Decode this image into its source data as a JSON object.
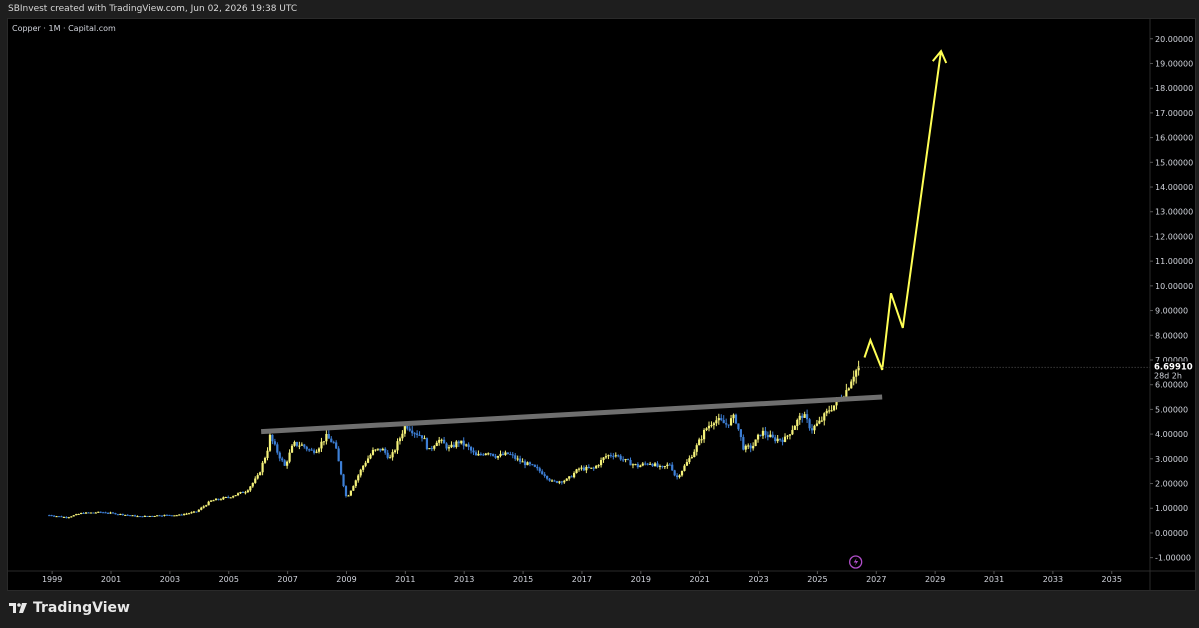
{
  "header": {
    "attribution": "SBInvest created with TradingView.com, Jun 02, 2026 19:38 UTC"
  },
  "symbol": {
    "label": "Copper · 1M · Capital.com"
  },
  "footer": {
    "brand": "TradingView",
    "logo_icon": "tradingview-logo-icon"
  },
  "price_marker": {
    "price": "6.69910",
    "countdown": "28d 2h"
  },
  "colors": {
    "background": "#000000",
    "up_candle": "#f5f27a",
    "down_candle": "#3d7fd6",
    "trendline": "#6f6f6f",
    "projection": "#ffff55",
    "axis_text": "#d1d4dc"
  },
  "chart_data": {
    "type": "candlestick",
    "title": "",
    "xlabel": "",
    "ylabel": "",
    "ylim": [
      -1.5,
      20.8
    ],
    "xlim": [
      1997.5,
      2036.3
    ],
    "y_ticks": [
      "20.00000",
      "19.00000",
      "18.00000",
      "17.00000",
      "16.00000",
      "15.00000",
      "14.00000",
      "13.00000",
      "12.00000",
      "11.00000",
      "10.00000",
      "9.00000",
      "8.00000",
      "7.00000",
      "6.00000",
      "5.00000",
      "4.00000",
      "3.00000",
      "2.00000",
      "1.00000",
      "0.00000",
      "-1.00000"
    ],
    "x_ticks": [
      "1999",
      "2001",
      "2003",
      "2005",
      "2007",
      "2009",
      "2011",
      "2013",
      "2015",
      "2017",
      "2019",
      "2021",
      "2023",
      "2025",
      "2027",
      "2029",
      "2031",
      "2033",
      "2035"
    ],
    "price_path": [
      [
        1998.9,
        0.72
      ],
      [
        1999.5,
        0.63
      ],
      [
        2000.0,
        0.8
      ],
      [
        2000.7,
        0.84
      ],
      [
        2001.3,
        0.76
      ],
      [
        2002.0,
        0.66
      ],
      [
        2002.7,
        0.72
      ],
      [
        2003.3,
        0.72
      ],
      [
        2003.9,
        0.86
      ],
      [
        2004.4,
        1.3
      ],
      [
        2005.0,
        1.45
      ],
      [
        2005.6,
        1.7
      ],
      [
        2006.0,
        2.3
      ],
      [
        2006.3,
        3.3
      ],
      [
        2006.4,
        3.9
      ],
      [
        2006.6,
        3.4
      ],
      [
        2006.9,
        2.7
      ],
      [
        2007.2,
        3.6
      ],
      [
        2007.5,
        3.55
      ],
      [
        2007.8,
        3.3
      ],
      [
        2008.0,
        3.4
      ],
      [
        2008.3,
        3.9
      ],
      [
        2008.6,
        3.6
      ],
      [
        2008.8,
        2.5
      ],
      [
        2009.0,
        1.4
      ],
      [
        2009.3,
        2.1
      ],
      [
        2009.6,
        2.8
      ],
      [
        2009.9,
        3.3
      ],
      [
        2010.2,
        3.4
      ],
      [
        2010.5,
        3.0
      ],
      [
        2010.8,
        3.8
      ],
      [
        2011.0,
        4.4
      ],
      [
        2011.3,
        4.1
      ],
      [
        2011.6,
        3.9
      ],
      [
        2011.8,
        3.3
      ],
      [
        2012.1,
        3.8
      ],
      [
        2012.5,
        3.4
      ],
      [
        2012.8,
        3.7
      ],
      [
        2013.1,
        3.5
      ],
      [
        2013.4,
        3.1
      ],
      [
        2013.8,
        3.3
      ],
      [
        2014.1,
        3.1
      ],
      [
        2014.5,
        3.2
      ],
      [
        2014.9,
        2.9
      ],
      [
        2015.3,
        2.7
      ],
      [
        2015.7,
        2.4
      ],
      [
        2016.0,
        2.05
      ],
      [
        2016.5,
        2.15
      ],
      [
        2016.9,
        2.6
      ],
      [
        2017.4,
        2.6
      ],
      [
        2017.8,
        3.1
      ],
      [
        2018.1,
        3.2
      ],
      [
        2018.5,
        2.9
      ],
      [
        2018.9,
        2.7
      ],
      [
        2019.3,
        2.85
      ],
      [
        2019.7,
        2.6
      ],
      [
        2020.0,
        2.8
      ],
      [
        2020.2,
        2.2
      ],
      [
        2020.6,
        2.9
      ],
      [
        2020.9,
        3.5
      ],
      [
        2021.2,
        4.2
      ],
      [
        2021.5,
        4.6
      ],
      [
        2021.9,
        4.4
      ],
      [
        2022.2,
        4.7
      ],
      [
        2022.5,
        3.4
      ],
      [
        2022.8,
        3.5
      ],
      [
        2023.1,
        4.1
      ],
      [
        2023.5,
        3.8
      ],
      [
        2023.9,
        3.8
      ],
      [
        2024.3,
        4.5
      ],
      [
        2024.5,
        4.8
      ],
      [
        2024.8,
        4.2
      ],
      [
        2025.1,
        4.5
      ],
      [
        2025.4,
        5.0
      ],
      [
        2025.7,
        5.3
      ],
      [
        2026.0,
        5.8
      ],
      [
        2026.2,
        6.4
      ],
      [
        2026.4,
        6.7
      ]
    ],
    "trendline": {
      "points": [
        [
          2006.1,
          4.1
        ],
        [
          2027.2,
          5.5
        ]
      ],
      "label": ""
    },
    "projection": {
      "points": [
        [
          2026.6,
          7.1
        ],
        [
          2026.8,
          7.8
        ],
        [
          2027.2,
          6.6
        ],
        [
          2027.5,
          9.7
        ],
        [
          2027.9,
          8.3
        ],
        [
          2029.2,
          19.5
        ]
      ],
      "label": ""
    },
    "current_price": 6.6991,
    "grid": false,
    "legend": "none"
  }
}
